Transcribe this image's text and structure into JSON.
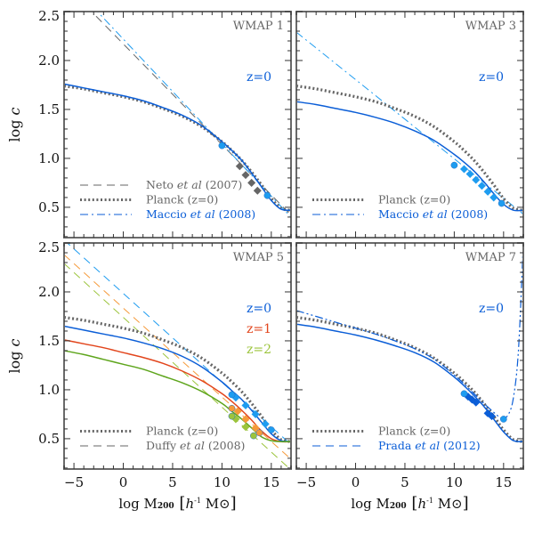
{
  "chart_data": {
    "type": "line",
    "xlabel": {
      "pre": "log M",
      "sub": "200",
      "open": " [",
      "h": "h",
      "sup": "-1",
      "unit": " M⊙",
      "close": "]"
    },
    "ylabel": {
      "pre": "log ",
      "var": "c"
    },
    "xlim": [
      -6,
      17
    ],
    "ylim": [
      0.19,
      2.5
    ],
    "xticks": [
      -5,
      0,
      5,
      10,
      15
    ],
    "xtick_labels": [
      "−5",
      "0",
      "5",
      "10",
      "15"
    ],
    "yticks": [
      0.5,
      1.0,
      1.5,
      2.0,
      2.5
    ],
    "ytick_labels": [
      "0.5",
      "1.0",
      "1.5",
      "2.0",
      "2.5"
    ],
    "colors": {
      "blue": "#0b5ed7",
      "lightblue": "#1e9cf0",
      "gray": "#666666",
      "red": "#e2451c",
      "orange": "#f59a3a",
      "green": "#5ea51c",
      "lightgreen": "#9cc43c"
    },
    "panels": [
      {
        "title": "WMAP 1",
        "zlabels": [
          {
            "text": "z=0",
            "color": "blue"
          }
        ],
        "series": [
          {
            "name": "Neto et al (2007)",
            "style": "dashed",
            "color": "gray",
            "x": [
              -3.7,
              17
            ],
            "y": [
              2.55,
              0.42
            ]
          },
          {
            "name": "Maccio et al (2008)",
            "style": "dashdot",
            "color": "lightblue",
            "x": [
              -3.1,
              17
            ],
            "y": [
              2.55,
              0.4
            ]
          },
          {
            "name": "Planck (z=0)",
            "style": "dotted",
            "color": "gray",
            "x": [
              -6,
              -4,
              -2,
              0,
              2,
              4,
              6,
              8,
              10,
              11,
              12,
              13,
              14,
              15,
              16,
              17
            ],
            "y": [
              1.74,
              1.71,
              1.67,
              1.63,
              1.58,
              1.51,
              1.43,
              1.32,
              1.17,
              1.08,
              0.98,
              0.86,
              0.73,
              0.59,
              0.49,
              0.47
            ]
          },
          {
            "name": "WMAP 1 z=0",
            "style": "solid",
            "color": "blue",
            "x": [
              -6,
              -4,
              -2,
              0,
              2,
              4,
              6,
              8,
              10,
              11,
              12,
              13,
              14,
              15,
              16,
              17
            ],
            "y": [
              1.76,
              1.72,
              1.68,
              1.64,
              1.59,
              1.52,
              1.44,
              1.33,
              1.17,
              1.08,
              0.98,
              0.85,
              0.71,
              0.57,
              0.48,
              0.47
            ]
          }
        ],
        "markers": [
          {
            "shape": "diamond",
            "color": "gray",
            "x": [
              11.8,
              12.4,
              13.0,
              13.6
            ],
            "y": [
              0.92,
              0.83,
              0.75,
              0.67
            ]
          },
          {
            "shape": "circle",
            "color": "lightblue",
            "x": [
              10.0,
              14.6
            ],
            "y": [
              1.13,
              0.62
            ]
          }
        ],
        "legend": [
          {
            "style": "dashed",
            "color": "gray",
            "pre": "Neto ",
            "it": "et al",
            "post": " (2007)",
            "text_color": "gray"
          },
          {
            "style": "dotted",
            "color": "gray",
            "pre": "Planck (z=0)",
            "it": "",
            "post": "",
            "text_color": "gray"
          },
          {
            "style": "dashdot",
            "color": "blue",
            "pre": "Maccio ",
            "it": "et al",
            "post": " (2008)",
            "text_color": "blue"
          }
        ]
      },
      {
        "title": "WMAP 3",
        "zlabels": [
          {
            "text": "z=0",
            "color": "blue"
          }
        ],
        "series": [
          {
            "name": "Maccio et al (2008)",
            "style": "dashdot",
            "color": "lightblue",
            "x": [
              -6,
              17
            ],
            "y": [
              2.29,
              0.43
            ]
          },
          {
            "name": "Planck (z=0)",
            "style": "dotted",
            "color": "gray",
            "x": [
              -6,
              -4,
              -2,
              0,
              2,
              4,
              6,
              8,
              10,
              11,
              12,
              13,
              14,
              15,
              16,
              17
            ],
            "y": [
              1.74,
              1.71,
              1.67,
              1.63,
              1.58,
              1.51,
              1.43,
              1.32,
              1.17,
              1.08,
              0.98,
              0.86,
              0.73,
              0.59,
              0.49,
              0.47
            ]
          },
          {
            "name": "WMAP 3 z=0",
            "style": "solid",
            "color": "blue",
            "x": [
              -6,
              -4,
              -2,
              0,
              2,
              4,
              6,
              8,
              10,
              11,
              12,
              13,
              14,
              15,
              16,
              17
            ],
            "y": [
              1.58,
              1.55,
              1.51,
              1.47,
              1.42,
              1.36,
              1.28,
              1.18,
              1.04,
              0.96,
              0.87,
              0.76,
              0.64,
              0.53,
              0.47,
              0.47
            ]
          }
        ],
        "markers": [
          {
            "shape": "diamond",
            "color": "lightblue",
            "x": [
              11.0,
              11.6,
              12.2,
              12.8,
              13.4,
              14.0
            ],
            "y": [
              0.89,
              0.84,
              0.78,
              0.72,
              0.66,
              0.6
            ]
          },
          {
            "shape": "circle",
            "color": "lightblue",
            "x": [
              10.0,
              14.8
            ],
            "y": [
              0.93,
              0.54
            ]
          }
        ],
        "legend": [
          {
            "style": "dotted",
            "color": "gray",
            "pre": "Planck (z=0)",
            "it": "",
            "post": "",
            "text_color": "gray"
          },
          {
            "style": "dashdot",
            "color": "blue",
            "pre": "Maccio ",
            "it": "et al",
            "post": " (2008)",
            "text_color": "blue"
          }
        ]
      },
      {
        "title": "WMAP 5",
        "zlabels": [
          {
            "text": "z=0",
            "color": "blue"
          },
          {
            "text": "z=1",
            "color": "red"
          },
          {
            "text": "z=2",
            "color": "lightgreen"
          }
        ],
        "series": [
          {
            "name": "Duffy et al (2008) z=0",
            "style": "dashed",
            "color": "lightblue",
            "x": [
              -6,
              17
            ],
            "y": [
              2.53,
              0.44
            ]
          },
          {
            "name": "Duffy et al (2008) z=1",
            "style": "dashed",
            "color": "orange",
            "x": [
              -6,
              17
            ],
            "y": [
              2.38,
              0.29
            ]
          },
          {
            "name": "Duffy et al (2008) z=2",
            "style": "dashed",
            "color": "lightgreen",
            "x": [
              -6,
              17
            ],
            "y": [
              2.29,
              0.18
            ]
          },
          {
            "name": "Planck (z=0)",
            "style": "dotted",
            "color": "gray",
            "x": [
              -6,
              -4,
              -2,
              0,
              2,
              4,
              6,
              8,
              10,
              11,
              12,
              13,
              14,
              15,
              16,
              17
            ],
            "y": [
              1.74,
              1.71,
              1.67,
              1.63,
              1.58,
              1.51,
              1.43,
              1.32,
              1.17,
              1.08,
              0.98,
              0.86,
              0.73,
              0.59,
              0.49,
              0.47
            ]
          },
          {
            "name": "WMAP 5 z=0",
            "style": "solid",
            "color": "blue",
            "x": [
              -6,
              -4,
              -2,
              0,
              2,
              4,
              6,
              8,
              10,
              11,
              12,
              13,
              14,
              15,
              16,
              17
            ],
            "y": [
              1.65,
              1.61,
              1.57,
              1.53,
              1.48,
              1.42,
              1.34,
              1.23,
              1.08,
              0.99,
              0.9,
              0.79,
              0.67,
              0.55,
              0.48,
              0.47
            ]
          },
          {
            "name": "WMAP 5 z=1",
            "style": "solid",
            "color": "red",
            "x": [
              -6,
              -4,
              -2,
              0,
              2,
              4,
              6,
              8,
              10,
              11,
              12,
              13,
              14,
              15,
              16,
              17
            ],
            "y": [
              1.51,
              1.47,
              1.43,
              1.38,
              1.33,
              1.27,
              1.19,
              1.09,
              0.96,
              0.88,
              0.79,
              0.69,
              0.58,
              0.5,
              0.47,
              0.47
            ]
          },
          {
            "name": "WMAP 5 z=2",
            "style": "solid",
            "color": "green",
            "x": [
              -6,
              -4,
              -2,
              0,
              2,
              4,
              6,
              8,
              10,
              11,
              12,
              13,
              14,
              15,
              16,
              17
            ],
            "y": [
              1.4,
              1.36,
              1.31,
              1.26,
              1.21,
              1.14,
              1.07,
              0.98,
              0.86,
              0.78,
              0.7,
              0.61,
              0.52,
              0.48,
              0.47,
              0.47
            ]
          }
        ],
        "markers": [
          {
            "shape": "diamond",
            "color": "lightblue",
            "x": [
              11.4,
              12.4,
              13.4,
              14.4
            ],
            "y": [
              0.92,
              0.84,
              0.75,
              0.65
            ]
          },
          {
            "shape": "diamond",
            "color": "orange",
            "x": [
              11.6,
              12.4,
              13.4
            ],
            "y": [
              0.78,
              0.7,
              0.61
            ]
          },
          {
            "shape": "diamond",
            "color": "lightgreen",
            "x": [
              11.4,
              12.4
            ],
            "y": [
              0.7,
              0.62
            ]
          },
          {
            "shape": "circle",
            "color": "lightblue",
            "x": [
              11.0,
              15.0
            ],
            "y": [
              0.95,
              0.59
            ]
          },
          {
            "shape": "circle",
            "color": "orange",
            "x": [
              11.0,
              13.8
            ],
            "y": [
              0.81,
              0.56
            ]
          },
          {
            "shape": "circle",
            "color": "lightgreen",
            "x": [
              11.0,
              13.2
            ],
            "y": [
              0.73,
              0.53
            ]
          }
        ],
        "legend": [
          {
            "style": "dotted",
            "color": "gray",
            "pre": "Planck (z=0)",
            "it": "",
            "post": "",
            "text_color": "gray"
          },
          {
            "style": "dashed",
            "color": "gray",
            "pre": "Duffy ",
            "it": "et al",
            "post": " (2008)",
            "text_color": "gray"
          }
        ]
      },
      {
        "title": "WMAP 7",
        "zlabels": [
          {
            "text": "z=0",
            "color": "blue"
          }
        ],
        "series": [
          {
            "name": "Planck (z=0)",
            "style": "dotted",
            "color": "gray",
            "x": [
              -6,
              -4,
              -2,
              0,
              2,
              4,
              6,
              8,
              10,
              11,
              12,
              13,
              14,
              15,
              16,
              17
            ],
            "y": [
              1.74,
              1.71,
              1.67,
              1.63,
              1.58,
              1.51,
              1.43,
              1.32,
              1.17,
              1.08,
              0.98,
              0.86,
              0.73,
              0.59,
              0.49,
              0.47
            ]
          },
          {
            "name": "Prada et al (2012)",
            "style": "dashdotdot",
            "color": "blue",
            "x": [
              -6,
              -4,
              -2,
              0,
              2,
              4,
              6,
              8,
              10,
              11,
              12,
              13,
              14,
              14.6,
              15,
              15.5,
              16,
              16.5,
              17
            ],
            "y": [
              1.81,
              1.75,
              1.69,
              1.63,
              1.57,
              1.5,
              1.42,
              1.31,
              1.15,
              1.06,
              0.96,
              0.86,
              0.77,
              0.72,
              0.71,
              0.75,
              0.92,
              1.4,
              2.5
            ]
          },
          {
            "name": "WMAP 7 z=0",
            "style": "solid",
            "color": "blue",
            "x": [
              -6,
              -4,
              -2,
              0,
              2,
              4,
              6,
              8,
              10,
              11,
              12,
              13,
              14,
              15,
              16,
              17
            ],
            "y": [
              1.67,
              1.64,
              1.6,
              1.56,
              1.51,
              1.45,
              1.38,
              1.28,
              1.13,
              1.04,
              0.94,
              0.83,
              0.7,
              0.57,
              0.48,
              0.47
            ]
          }
        ],
        "markers": [
          {
            "shape": "diamond",
            "color": "blue",
            "x": [
              11.4,
              11.8,
              12.2,
              13.4,
              13.8
            ],
            "y": [
              0.93,
              0.9,
              0.87,
              0.76,
              0.73
            ]
          },
          {
            "shape": "circle",
            "color": "lightblue",
            "x": [
              11.0,
              15.0
            ],
            "y": [
              0.96,
              0.7
            ]
          }
        ],
        "legend": [
          {
            "style": "dotted",
            "color": "gray",
            "pre": "Planck (z=0)",
            "it": "",
            "post": "",
            "text_color": "gray"
          },
          {
            "style": "dashed",
            "color": "blue",
            "pre": "Prada ",
            "it": "et al",
            "post": " (2012)",
            "text_color": "blue"
          }
        ]
      }
    ]
  }
}
